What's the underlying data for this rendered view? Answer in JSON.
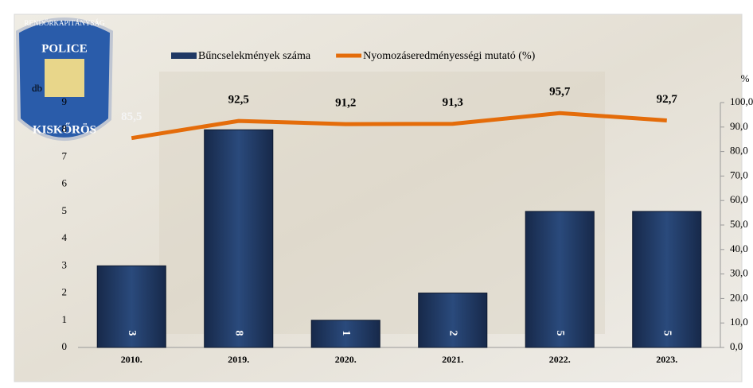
{
  "badge": {
    "top": "RENDŐRKAPITÁNYSÁG",
    "middle": "POLICE",
    "bottom": "KISKŐRÖS"
  },
  "chart_data": {
    "type": "bar_line",
    "y_label": "db",
    "y2_label": "%",
    "categories": [
      "2010.",
      "2019.",
      "2020.",
      "2021.",
      "2022.",
      "2023."
    ],
    "series": [
      {
        "name": "Bűncselekmények száma",
        "type": "bar",
        "color": "#1f3864",
        "values": [
          3,
          8,
          1,
          2,
          5,
          5
        ]
      },
      {
        "name": "Nyomozáseredményességi mutató (%)",
        "type": "line",
        "axis": "y2",
        "color": "#e46c0a",
        "values": [
          85.5,
          92.5,
          91.2,
          91.3,
          95.7,
          92.7
        ],
        "value_labels": [
          "85,5",
          "92,5",
          "91,2",
          "91,3",
          "95,7",
          "92,7"
        ]
      }
    ],
    "ylim": [
      0,
      9
    ],
    "yticks": [
      0,
      1,
      2,
      3,
      4,
      5,
      6,
      7,
      8,
      9
    ],
    "y2lim": [
      0,
      100
    ],
    "y2ticks": [
      {
        "value": 0,
        "label": "0,0"
      },
      {
        "value": 10,
        "label": "10,0"
      },
      {
        "value": 20,
        "label": "20,0"
      },
      {
        "value": 30,
        "label": "30,0"
      },
      {
        "value": 40,
        "label": "40,0"
      },
      {
        "value": 50,
        "label": "50,0"
      },
      {
        "value": 60,
        "label": "60,0"
      },
      {
        "value": 70,
        "label": "70,0"
      },
      {
        "value": 80,
        "label": "80,0"
      },
      {
        "value": 90,
        "label": "90,0"
      },
      {
        "value": 100,
        "label": "100,0"
      }
    ],
    "legend": "top"
  }
}
